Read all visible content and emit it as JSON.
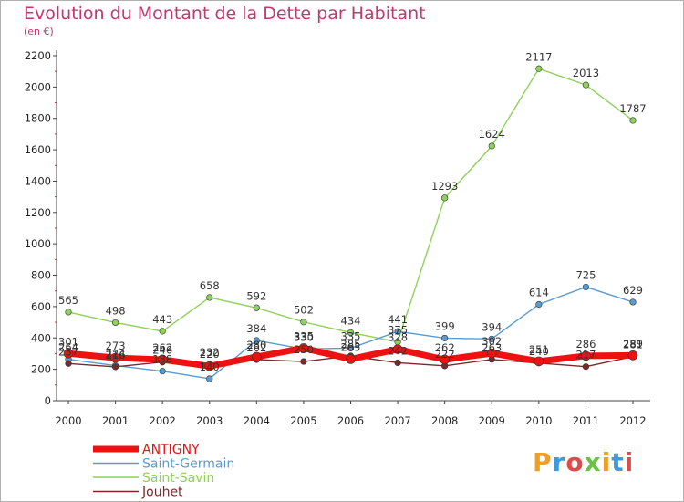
{
  "title": "Evolution du Montant de la Dette par Habitant",
  "subtitle": "(en €)",
  "logo": "Proxiti",
  "chart_data": {
    "type": "line",
    "x": [
      "2000",
      "2001",
      "2002",
      "2003",
      "2004",
      "2005",
      "2006",
      "2007",
      "2008",
      "2009",
      "2010",
      "2011",
      "2012"
    ],
    "ylim": [
      0,
      2200
    ],
    "yticks": [
      0,
      200,
      400,
      600,
      800,
      1000,
      1200,
      1400,
      1600,
      1800,
      2000,
      2200
    ],
    "grid": false,
    "legend_position": "bottom-left",
    "series": [
      {
        "name": "Saint-Savin",
        "color": "#8fd15a",
        "width": 1.4,
        "values": [
          565,
          498,
          443,
          658,
          592,
          502,
          434,
          375,
          1293,
          1624,
          2117,
          2013,
          1787
        ]
      },
      {
        "name": "Saint-Germain",
        "color": "#5a9bd0",
        "width": 1.4,
        "values": [
          264,
          224,
          188,
          140,
          384,
          330,
          335,
          441,
          399,
          394,
          614,
          725,
          629
        ]
      },
      {
        "name": "Jouhet",
        "color": "#7a2a2a",
        "width": 1.4,
        "values": [
          237,
          216,
          246,
          232,
          262,
          250,
          285,
          242,
          222,
          263,
          240,
          217,
          281
        ]
      },
      {
        "name": "ANTIGNY",
        "color": "#ee1111",
        "width": 7,
        "values": [
          301,
          273,
          262,
          220,
          280,
          335,
          265,
          328,
          262,
          302,
          251,
          286,
          289
        ]
      }
    ],
    "legend_order": [
      "ANTIGNY",
      "Saint-Germain",
      "Saint-Savin",
      "Jouhet"
    ]
  }
}
